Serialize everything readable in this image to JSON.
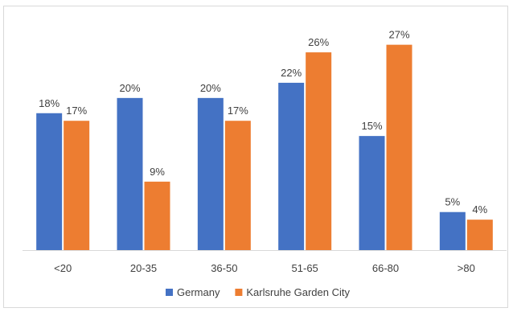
{
  "chart_data": {
    "type": "bar",
    "categories": [
      "<20",
      "20-35",
      "36-50",
      "51-65",
      "66-80",
      ">80"
    ],
    "series": [
      {
        "name": "Germany",
        "values": [
          18,
          20,
          20,
          22,
          15,
          5
        ],
        "labels": [
          "18%",
          "20%",
          "20%",
          "22%",
          "15%",
          "5%"
        ],
        "color": "#4472C4"
      },
      {
        "name": "Karlsruhe Garden City",
        "values": [
          17,
          9,
          17,
          26,
          27,
          4
        ],
        "labels": [
          "17%",
          "9%",
          "17%",
          "26%",
          "27%",
          "4%"
        ],
        "color": "#ED7D31"
      }
    ],
    "ylim": [
      0,
      29.5
    ],
    "grid": false,
    "legend": "bottom",
    "title": "",
    "xlabel": "",
    "ylabel": ""
  }
}
